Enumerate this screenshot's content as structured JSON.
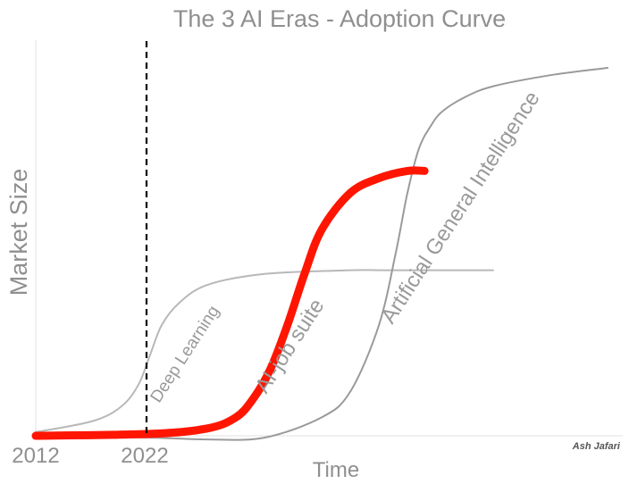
{
  "chart_data": {
    "type": "line",
    "title": "The 3 AI Eras - Adoption Curve",
    "xlabel": "Time",
    "ylabel": "Market Size",
    "x_ticks": [
      "2012",
      "2022"
    ],
    "marker_line": {
      "x_tick": "2022",
      "style": "dashed",
      "color": "#000000"
    },
    "series": [
      {
        "name": "Deep Learning",
        "color": "#b8b8b8",
        "width": 2,
        "x": [
          0,
          0.1,
          0.15,
          0.18,
          0.2,
          0.22,
          0.25,
          0.3,
          0.4,
          0.55,
          0.6,
          0.7,
          0.8
        ],
        "y": [
          0.01,
          0.04,
          0.08,
          0.14,
          0.22,
          0.3,
          0.36,
          0.41,
          0.44,
          0.45,
          0.45,
          0.45,
          0.45
        ]
      },
      {
        "name": "AI-job suite",
        "color": "#ff1500",
        "width": 9,
        "x": [
          0,
          0.2,
          0.3,
          0.35,
          0.38,
          0.41,
          0.44,
          0.47,
          0.5,
          0.55,
          0.6,
          0.65,
          0.68
        ],
        "y": [
          0.0,
          0.005,
          0.02,
          0.05,
          0.1,
          0.18,
          0.3,
          0.44,
          0.56,
          0.66,
          0.7,
          0.72,
          0.72
        ]
      },
      {
        "name": "Artificial General Intelligence",
        "color": "#9a9a9a",
        "width": 2,
        "x": [
          0,
          0.2,
          0.3,
          0.4,
          0.5,
          0.55,
          0.6,
          0.63,
          0.65,
          0.67,
          0.69,
          0.71,
          0.75,
          0.8,
          0.9,
          1.0
        ],
        "y": [
          0.0,
          -0.005,
          -0.01,
          -0.005,
          0.05,
          0.12,
          0.3,
          0.5,
          0.66,
          0.78,
          0.84,
          0.88,
          0.92,
          0.95,
          0.98,
          1.0
        ]
      }
    ],
    "annotations": [
      {
        "text": "Deep Learning",
        "series": "Deep Learning"
      },
      {
        "text": "AI-job suite",
        "series": "AI-job suite"
      },
      {
        "text": "Artificial General Intelligence",
        "series": "Artificial General Intelligence"
      }
    ],
    "credit": "Ash Jafari",
    "grid": false,
    "legend": "none"
  }
}
